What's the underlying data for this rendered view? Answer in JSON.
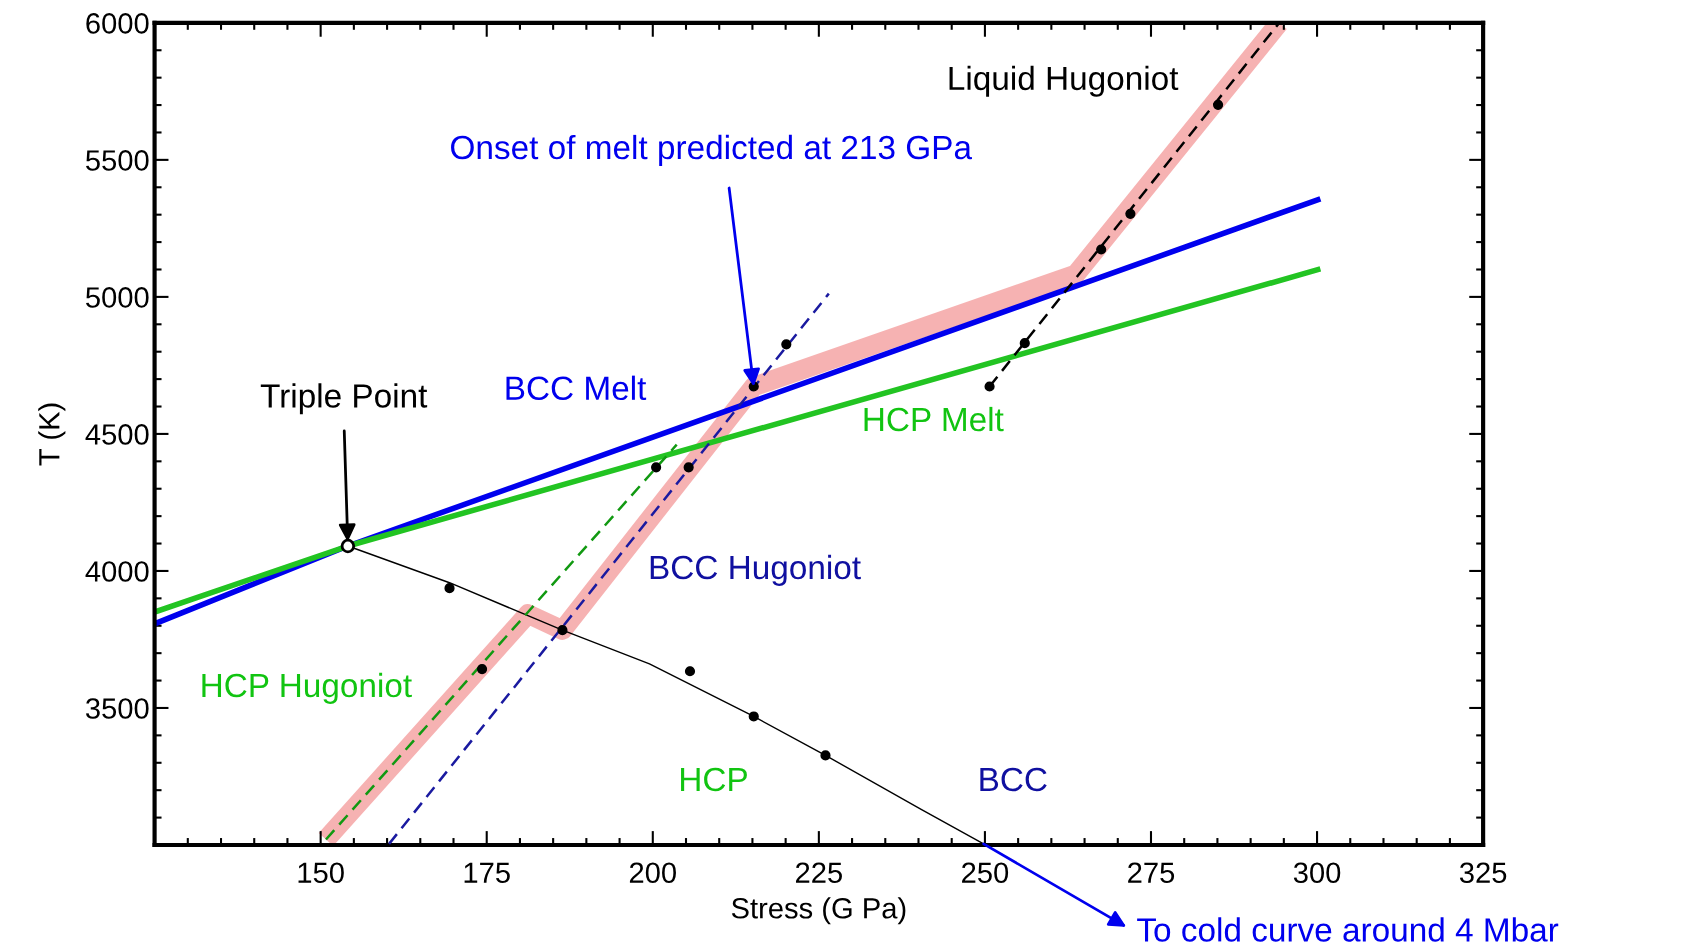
{
  "chart_data": {
    "type": "line",
    "xlabel": "Stress (G Pa)",
    "ylabel": "T (K)",
    "xlim": [
      125,
      325
    ],
    "xticks": [
      150,
      175,
      200,
      225,
      250,
      275,
      300,
      325
    ],
    "ylim": [
      3000,
      6000
    ],
    "yticks": [
      3500,
      4000,
      4500,
      5000,
      5500,
      6000
    ],
    "series": [
      {
        "color": "#f4a4a4",
        "line_style": "solid",
        "x": [
          150.8,
          181.2,
          186.4,
          215.2,
          263.7,
          294.3
        ],
        "values": [
          3020,
          3843,
          3784,
          4673,
          5083,
          6000
        ]
      },
      {
        "color": "#0000ee",
        "line_style": "solid",
        "x": [
          125,
          154.1,
          300.5
        ],
        "values": [
          3807,
          4091,
          5358
        ]
      },
      {
        "color": "#22c422",
        "line_style": "solid",
        "x": [
          125,
          154.1,
          300.5
        ],
        "values": [
          3850,
          4091,
          5102
        ]
      },
      {
        "color": "#000000",
        "line_style": "solid",
        "x": [
          154.1,
          169.4,
          186.4,
          199.5,
          215.2,
          226,
          240.4,
          249.8
        ],
        "values": [
          4091,
          3957,
          3784,
          3661,
          3469,
          3327,
          3130,
          3004
        ]
      },
      {
        "color": "#119911",
        "line_style": "dashed",
        "x": [
          150.8,
          203.6
        ],
        "values": [
          3020,
          4461
        ]
      },
      {
        "color": "#1a1aa0",
        "line_style": "dashed",
        "x": [
          160.3,
          226.5
        ],
        "values": [
          3004,
          5012
        ]
      },
      {
        "color": "#000000",
        "line_style": "dashed",
        "x": [
          250.7,
          294.3
        ],
        "values": [
          4673,
          6000
        ]
      },
      {
        "type": "scatter",
        "color": "#000000",
        "marker": "circle",
        "x": [
          169.4,
          205.6,
          215.2,
          226,
          186.4,
          174.3,
          200.5,
          205.4,
          215.2,
          220.1,
          250.7,
          256.0,
          267.5,
          271.9,
          285.1
        ],
        "values": [
          3937,
          3634,
          3469,
          3327,
          3784,
          3642,
          4378,
          4378,
          4673,
          4827,
          4673,
          4831,
          5173,
          5303,
          5701
        ]
      },
      {
        "type": "scatter",
        "color": "#000000",
        "marker": "circle",
        "x": [
          154.1
        ],
        "values": [
          4091
        ]
      }
    ],
    "annotations": [
      "Liquid Hugoniot",
      {
        "text": "Onset of melt predicted at 213 GPa",
        "x": 215.2,
        "y": 4673
      },
      {
        "text": "Triple Point",
        "x": 154.1,
        "y": 4091
      },
      "BCC Melt",
      "HCP Melt",
      "BCC Hugoniot",
      "HCP Hugoniot",
      "HCP",
      "BCC",
      {
        "text": "To cold curve around 4 Mbar",
        "x": 249.8,
        "y": 3004
      }
    ]
  }
}
